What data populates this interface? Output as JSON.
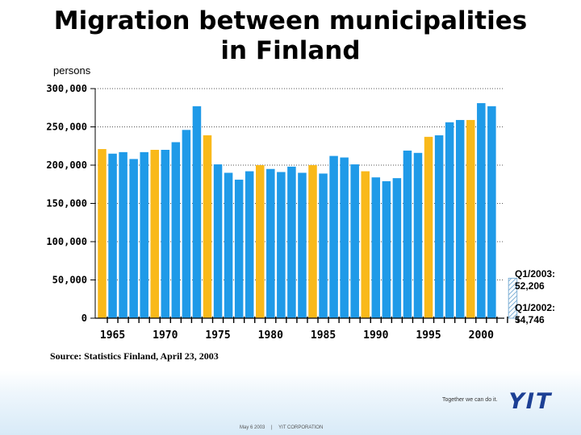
{
  "title_line1": "Migration between municipalities",
  "title_line2": "in Finland",
  "units_label": "persons",
  "source": "Source: Statistics Finland, April 23, 2003",
  "q1_2003_label": "Q1/2003:",
  "q1_2003_value": "52,206",
  "q1_2002_label": "Q1/2002:",
  "q1_2002_value": "54,746",
  "footer": {
    "slogan": "Together we can do it.",
    "logo": "YIT",
    "date": "May 6 2003",
    "separator": "|",
    "company": "YIT CORPORATION"
  },
  "colors": {
    "blue": "#1f9ae8",
    "yellow": "#f9b91a",
    "grid": "#555555",
    "hatch": "#7fb0d6"
  },
  "chart_data": {
    "type": "bar",
    "ylim": [
      0,
      300000
    ],
    "yticks": [
      0,
      50000,
      100000,
      150000,
      200000,
      250000,
      300000
    ],
    "ytick_labels": [
      "0",
      "50,000",
      "100,000",
      "150,000",
      "200,000",
      "250,000",
      "300,000"
    ],
    "xtick_labels": [
      "1965",
      "1970",
      "1975",
      "1980",
      "1985",
      "1990",
      "1995",
      "2000"
    ],
    "grid": "horizontal-dotted",
    "x": [
      1964,
      1965,
      1966,
      1967,
      1968,
      1969,
      1970,
      1971,
      1972,
      1973,
      1974,
      1975,
      1976,
      1977,
      1978,
      1979,
      1980,
      1981,
      1982,
      1983,
      1984,
      1985,
      1986,
      1987,
      1988,
      1989,
      1990,
      1991,
      1992,
      1993,
      1994,
      1995,
      1996,
      1997,
      1998,
      1999,
      2000,
      2001,
      2002,
      2003
    ],
    "values": [
      221000,
      215000,
      217000,
      208000,
      217000,
      220000,
      220000,
      230000,
      246000,
      277000,
      239000,
      201000,
      190000,
      181000,
      192000,
      200000,
      195000,
      191000,
      198000,
      190000,
      200000,
      189000,
      212000,
      210000,
      201000,
      192000,
      184000,
      179000,
      183000,
      219000,
      216000,
      237000,
      239000,
      256000,
      259000,
      259000,
      281000,
      277000,
      0,
      52206
    ],
    "highlight_years": [
      1964,
      1969,
      1974,
      1979,
      1984,
      1989,
      1995,
      1999
    ],
    "hatched_years": [
      2003
    ]
  }
}
